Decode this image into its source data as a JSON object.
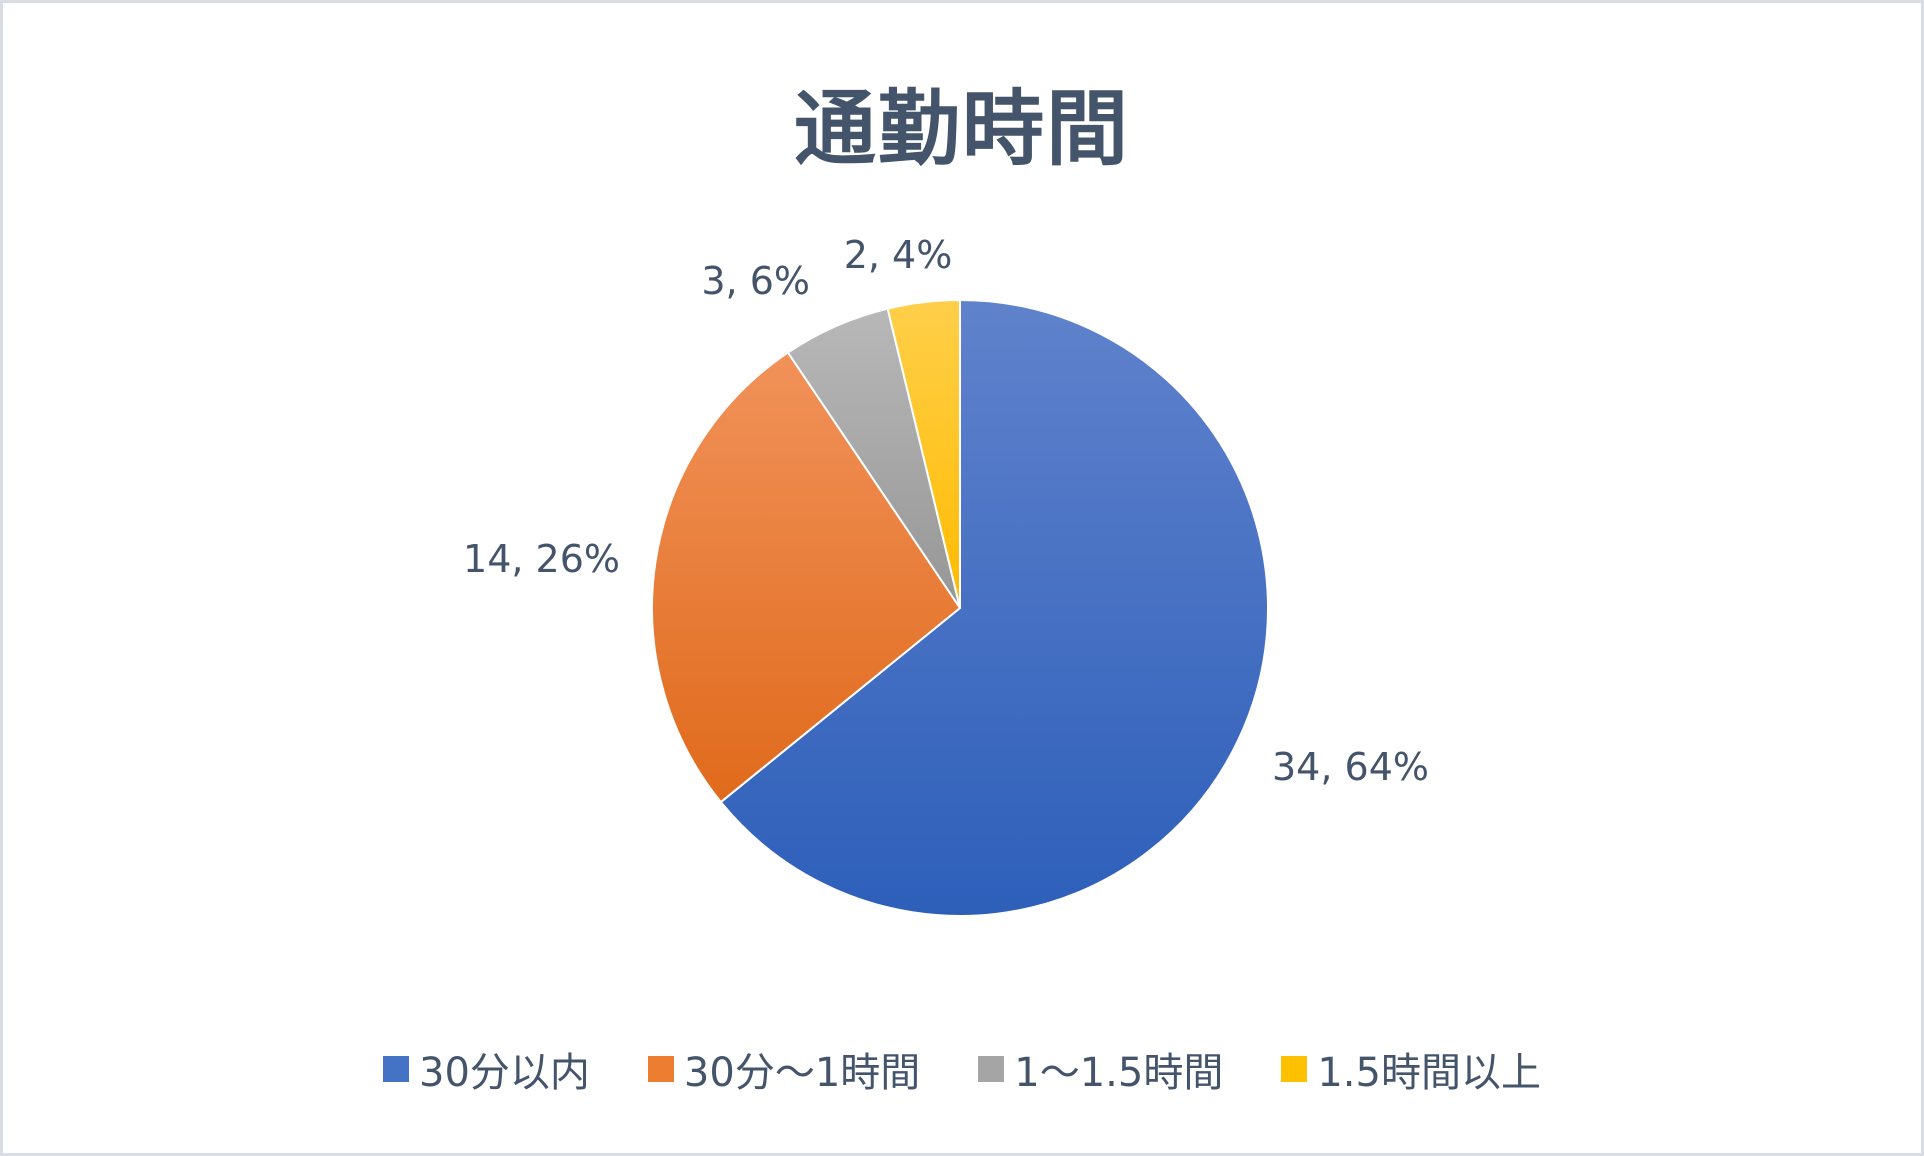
{
  "chart_data": {
    "type": "pie",
    "title": "通勤時間",
    "categories": [
      "30分以内",
      "30分～1時間",
      "1～1.5時間",
      "1.5時間以上"
    ],
    "values": [
      34,
      14,
      3,
      2
    ],
    "percentages": [
      64,
      26,
      6,
      4
    ],
    "data_labels": [
      "34, 64%",
      "14, 26%",
      "3, 6%",
      "2, 4%"
    ],
    "colors": [
      "#4472c4",
      "#ed7d31",
      "#a5a5a5",
      "#ffc000"
    ],
    "legend": "bottom",
    "start_angle": "12 o'clock",
    "direction": "clockwise"
  }
}
